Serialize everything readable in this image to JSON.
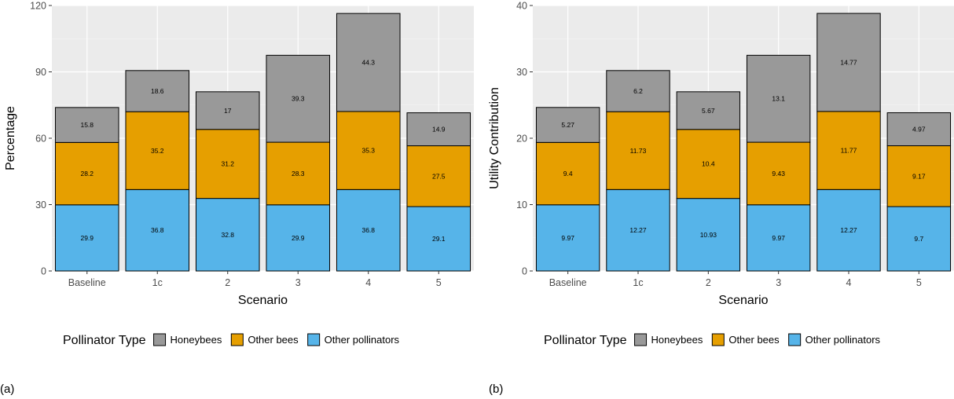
{
  "figure": {
    "panels": [
      {
        "label": "(a)"
      },
      {
        "label": "(b)"
      }
    ]
  },
  "legend": {
    "title": "Pollinator Type",
    "entries": [
      {
        "name": "Honeybees",
        "color": "#999999"
      },
      {
        "name": "Other bees",
        "color": "#E69F00"
      },
      {
        "name": "Other pollinators",
        "color": "#56B4E9"
      }
    ]
  },
  "chart_data": [
    {
      "type": "bar",
      "stacked": true,
      "title": "",
      "xlabel": "Scenario",
      "ylabel": "Percentage",
      "ylim": [
        0,
        120
      ],
      "yticks": [
        0,
        30,
        60,
        90,
        120
      ],
      "grid": true,
      "legend_position": "bottom",
      "categories": [
        "Baseline",
        "1c",
        "2",
        "3",
        "4",
        "5"
      ],
      "series": [
        {
          "name": "Other pollinators",
          "values": [
            29.9,
            36.8,
            32.8,
            29.9,
            36.8,
            29.1
          ],
          "labels": [
            "29.9",
            "36.8",
            "32.8",
            "29.9",
            "36.8",
            "29.1"
          ]
        },
        {
          "name": "Other bees",
          "values": [
            28.2,
            35.2,
            31.2,
            28.3,
            35.3,
            27.5
          ],
          "labels": [
            "28.2",
            "35.2",
            "31.2",
            "28.3",
            "35.3",
            "27.5"
          ]
        },
        {
          "name": "Honeybees",
          "values": [
            15.8,
            18.6,
            17,
            39.3,
            44.3,
            14.9
          ],
          "labels": [
            "15.8",
            "18.6",
            "17",
            "39.3",
            "44.3",
            "14.9"
          ]
        }
      ]
    },
    {
      "type": "bar",
      "stacked": true,
      "title": "",
      "xlabel": "Scenario",
      "ylabel": "Utility Contribution",
      "ylim": [
        0,
        40
      ],
      "yticks": [
        0,
        10,
        20,
        30,
        40
      ],
      "grid": true,
      "legend_position": "bottom",
      "categories": [
        "Baseline",
        "1c",
        "2",
        "3",
        "4",
        "5"
      ],
      "series": [
        {
          "name": "Other pollinators",
          "values": [
            9.97,
            12.27,
            10.93,
            9.97,
            12.27,
            9.7
          ],
          "labels": [
            "9.97",
            "12.27",
            "10.93",
            "9.97",
            "12.27",
            "9.7"
          ]
        },
        {
          "name": "Other bees",
          "values": [
            9.4,
            11.73,
            10.4,
            9.43,
            11.77,
            9.17
          ],
          "labels": [
            "9.4",
            "11.73",
            "10.4",
            "9.43",
            "11.77",
            "9.17"
          ]
        },
        {
          "name": "Honeybees",
          "values": [
            5.27,
            6.2,
            5.67,
            13.1,
            14.77,
            4.97
          ],
          "labels": [
            "5.27",
            "6.2",
            "5.67",
            "13.1",
            "14.77",
            "4.97"
          ]
        }
      ]
    }
  ]
}
